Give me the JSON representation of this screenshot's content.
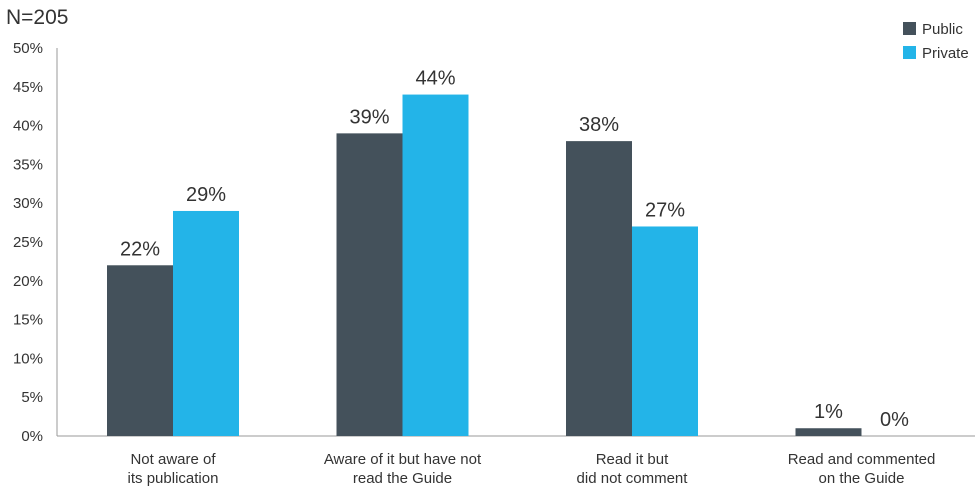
{
  "chart_data": {
    "type": "bar",
    "note": "N=205",
    "categories": [
      [
        "Not aware of",
        "its publication"
      ],
      [
        "Aware of it but have not",
        "read the Guide"
      ],
      [
        "Read it but",
        "did not comment"
      ],
      [
        "Read and commented",
        "on the Guide"
      ]
    ],
    "series": [
      {
        "name": "Public",
        "color": "#44515b",
        "values": [
          22,
          39,
          38,
          1
        ],
        "labels": [
          "22%",
          "39%",
          "38%",
          "1%"
        ]
      },
      {
        "name": "Private",
        "color": "#23b4e8",
        "values": [
          29,
          44,
          27,
          0
        ],
        "labels": [
          "29%",
          "44%",
          "27%",
          "0%"
        ]
      }
    ],
    "y_ticks": [
      "0%",
      "5%",
      "10%",
      "15%",
      "20%",
      "25%",
      "30%",
      "35%",
      "40%",
      "45%",
      "50%"
    ],
    "ylim": [
      0,
      50
    ],
    "grid": false,
    "legend_position": "top-right"
  }
}
